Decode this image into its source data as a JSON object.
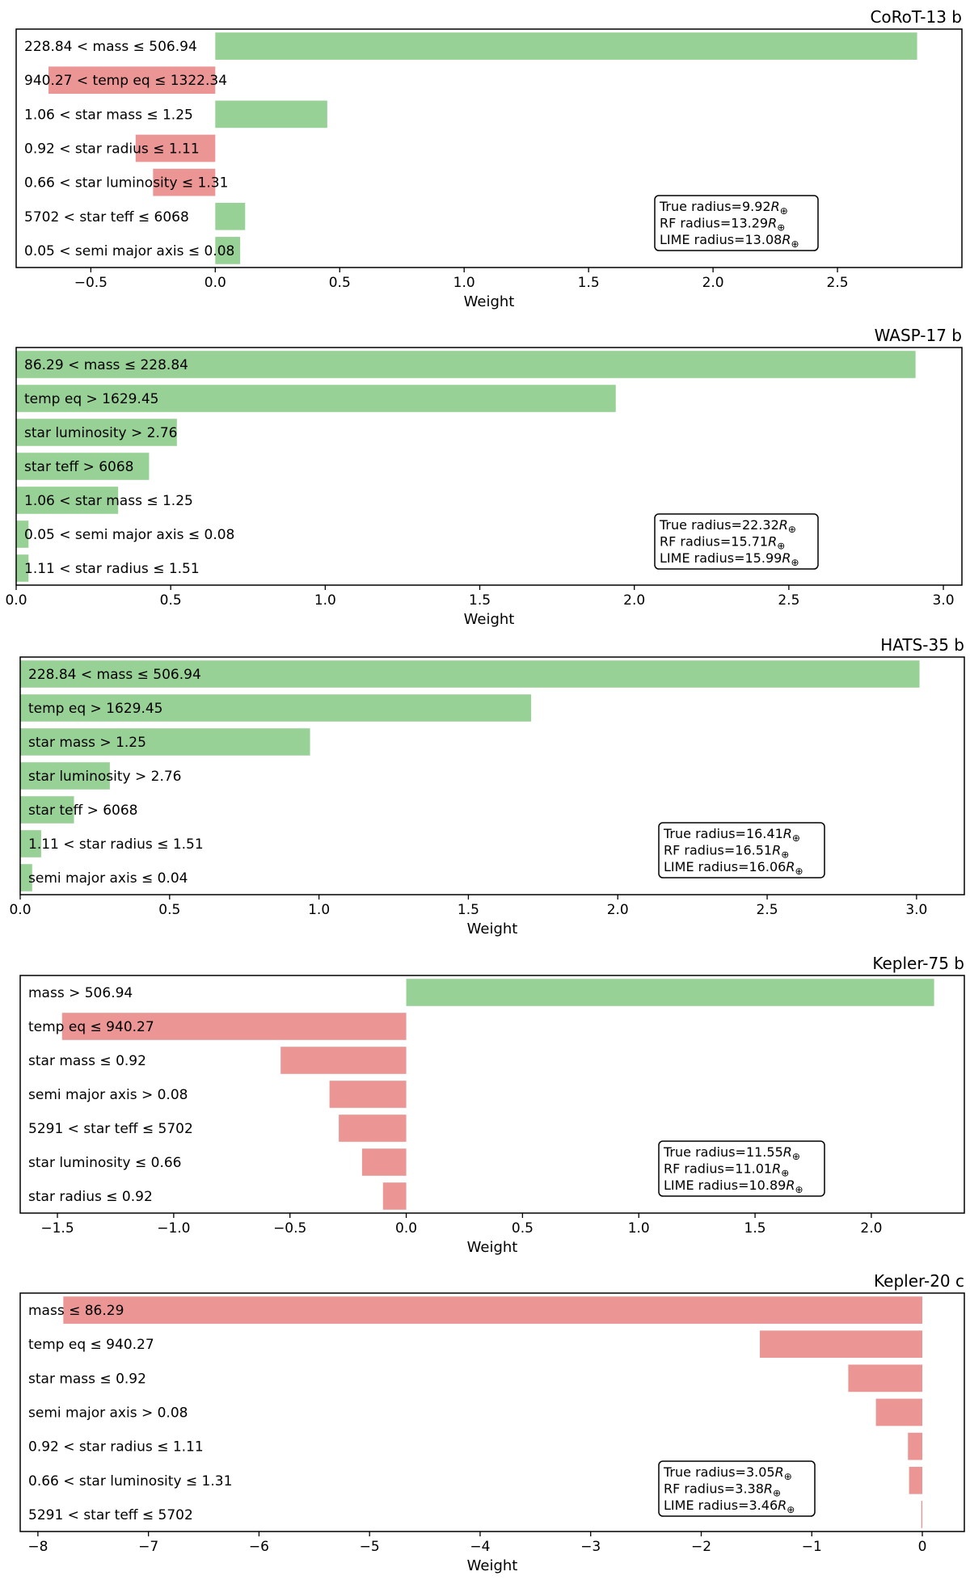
{
  "colors": {
    "positive": "#98d195",
    "negative": "#eb9595"
  },
  "chart_data": [
    {
      "type": "bar",
      "orientation": "horizontal",
      "title": "CoRoT-13 b",
      "xlabel": "Weight",
      "xlim": [
        -0.8,
        3.0
      ],
      "xticks": [
        -0.5,
        0.0,
        0.5,
        1.0,
        1.5,
        2.0,
        2.5
      ],
      "xtick_labels": [
        "−0.5",
        "0.0",
        "0.5",
        "1.0",
        "1.5",
        "2.0",
        "2.5"
      ],
      "categories": [
        "228.84 < mass ≤ 506.94",
        "940.27 < temp eq ≤ 1322.34",
        "1.06 < star mass ≤ 1.25",
        "0.92 < star radius ≤ 1.11",
        "0.66 < star luminosity ≤ 1.31",
        "5702 < star teff ≤ 6068",
        "0.05 < semi major axis ≤ 0.08"
      ],
      "values": [
        2.82,
        -0.67,
        0.45,
        -0.32,
        -0.25,
        0.12,
        0.1
      ],
      "legend": {
        "true_label": "True radius=",
        "true_value": "9.92",
        "rf_label": "RF radius=",
        "rf_value": "13.29",
        "lime_label": "LIME radius=",
        "lime_value": "13.08",
        "unit_symbol": "R",
        "unit_sub": "⊕"
      }
    },
    {
      "type": "bar",
      "orientation": "horizontal",
      "title": "WASP-17 b",
      "xlabel": "Weight",
      "xlim": [
        0.0,
        3.06
      ],
      "xticks": [
        0.0,
        0.5,
        1.0,
        1.5,
        2.0,
        2.5,
        3.0
      ],
      "xtick_labels": [
        "0.0",
        "0.5",
        "1.0",
        "1.5",
        "2.0",
        "2.5",
        "3.0"
      ],
      "categories": [
        "86.29 < mass ≤ 228.84",
        "temp eq > 1629.45",
        "star luminosity > 2.76",
        "star teff > 6068",
        "1.06 < star mass ≤ 1.25",
        "0.05 < semi major axis ≤ 0.08",
        "1.11 < star radius ≤ 1.51"
      ],
      "values": [
        2.91,
        1.94,
        0.52,
        0.43,
        0.33,
        0.04,
        0.04
      ],
      "legend": {
        "true_label": "True radius=",
        "true_value": "22.32",
        "rf_label": "RF radius=",
        "rf_value": "15.71",
        "lime_label": "LIME radius=",
        "lime_value": "15.99",
        "unit_symbol": "R",
        "unit_sub": "⊕"
      }
    },
    {
      "type": "bar",
      "orientation": "horizontal",
      "title": "HATS-35 b",
      "xlabel": "Weight",
      "xlim": [
        0.0,
        3.16
      ],
      "xticks": [
        0.0,
        0.5,
        1.0,
        1.5,
        2.0,
        2.5,
        3.0
      ],
      "xtick_labels": [
        "0.0",
        "0.5",
        "1.0",
        "1.5",
        "2.0",
        "2.5",
        "3.0"
      ],
      "categories": [
        "228.84 < mass ≤ 506.94",
        "temp eq > 1629.45",
        "star mass > 1.25",
        "star luminosity > 2.76",
        "star teff > 6068",
        "1.11 < star radius ≤ 1.51",
        "semi major axis ≤ 0.04"
      ],
      "values": [
        3.01,
        1.71,
        0.97,
        0.3,
        0.18,
        0.07,
        0.04
      ],
      "legend": {
        "true_label": "True radius=",
        "true_value": "16.41",
        "rf_label": "RF radius=",
        "rf_value": "16.51",
        "lime_label": "LIME radius=",
        "lime_value": "16.06",
        "unit_symbol": "R",
        "unit_sub": "⊕"
      }
    },
    {
      "type": "bar",
      "orientation": "horizontal",
      "title": "Kepler-75 b",
      "xlabel": "Weight",
      "xlim": [
        -1.66,
        2.4
      ],
      "xticks": [
        -1.5,
        -1.0,
        -0.5,
        0.0,
        0.5,
        1.0,
        1.5,
        2.0
      ],
      "xtick_labels": [
        "−1.5",
        "−1.0",
        "−0.5",
        "0.0",
        "0.5",
        "1.0",
        "1.5",
        "2.0"
      ],
      "categories": [
        "mass > 506.94",
        "temp eq ≤ 940.27",
        "star mass ≤ 0.92",
        "semi major axis > 0.08",
        "5291 < star teff ≤ 5702",
        "star luminosity ≤ 0.66",
        "star radius ≤ 0.92"
      ],
      "values": [
        2.27,
        -1.48,
        -0.54,
        -0.33,
        -0.29,
        -0.19,
        -0.1
      ],
      "legend": {
        "true_label": "True radius=",
        "true_value": "11.55",
        "rf_label": "RF radius=",
        "rf_value": "11.01",
        "lime_label": "LIME radius=",
        "lime_value": "10.89",
        "unit_symbol": "R",
        "unit_sub": "⊕"
      }
    },
    {
      "type": "bar",
      "orientation": "horizontal",
      "title": "Kepler-20 c",
      "xlabel": "Weight",
      "xlim": [
        -8.16,
        0.38
      ],
      "xticks": [
        -8,
        -7,
        -6,
        -5,
        -4,
        -3,
        -2,
        -1,
        0
      ],
      "xtick_labels": [
        "−8",
        "−7",
        "−6",
        "−5",
        "−4",
        "−3",
        "−2",
        "−1",
        "0"
      ],
      "categories": [
        "mass ≤ 86.29",
        "temp eq ≤ 940.27",
        "star mass ≤ 0.92",
        "semi major axis > 0.08",
        "0.92 < star radius ≤ 1.11",
        "0.66 < star luminosity ≤ 1.31",
        "5291 < star teff ≤ 5702"
      ],
      "values": [
        -7.77,
        -1.47,
        -0.67,
        -0.42,
        -0.13,
        -0.12,
        -0.01
      ],
      "legend": {
        "true_label": "True radius=",
        "true_value": "3.05",
        "rf_label": "RF radius=",
        "rf_value": "3.38",
        "lime_label": "LIME radius=",
        "lime_value": "3.46",
        "unit_symbol": "R",
        "unit_sub": "⊕"
      }
    }
  ]
}
